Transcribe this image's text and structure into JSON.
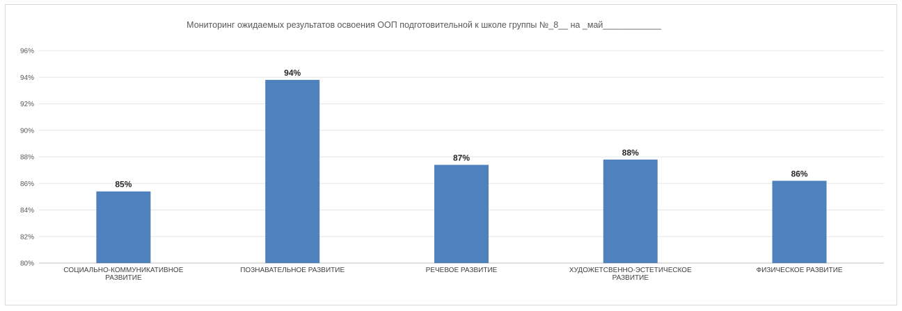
{
  "chart_data": {
    "type": "bar",
    "title": "Мониторинг ожидаемых результатов освоения ООП подготовительной к школе группы №_8__ на _май____________",
    "xlabel": "",
    "ylabel": "",
    "ylim": [
      0.8,
      0.96
    ],
    "yticks": [
      "80%",
      "82%",
      "84%",
      "86%",
      "88%",
      "90%",
      "92%",
      "94%",
      "96%"
    ],
    "categories": [
      [
        "СОЦИАЛЬНО-КОММУНИКАТИВНОЕ",
        "РАЗВИТИЕ"
      ],
      [
        "ПОЗНАВАТЕЛЬНОЕ РАЗВИТИЕ"
      ],
      [
        "РЕЧЕВОЕ РАЗВИТИЕ"
      ],
      [
        "ХУДОЖЕТСВЕННО-ЭСТЕТИЧЕСКОЕ",
        "РАЗВИТИЕ"
      ],
      [
        "ФИЗИЧЕСКОЕ  РАЗВИТИЕ"
      ]
    ],
    "values": [
      0.854,
      0.938,
      0.874,
      0.878,
      0.862
    ],
    "data_labels": [
      "85%",
      "94%",
      "87%",
      "88%",
      "86%"
    ],
    "grid": true,
    "legend": "none",
    "bar_color": "#4f81bd"
  }
}
